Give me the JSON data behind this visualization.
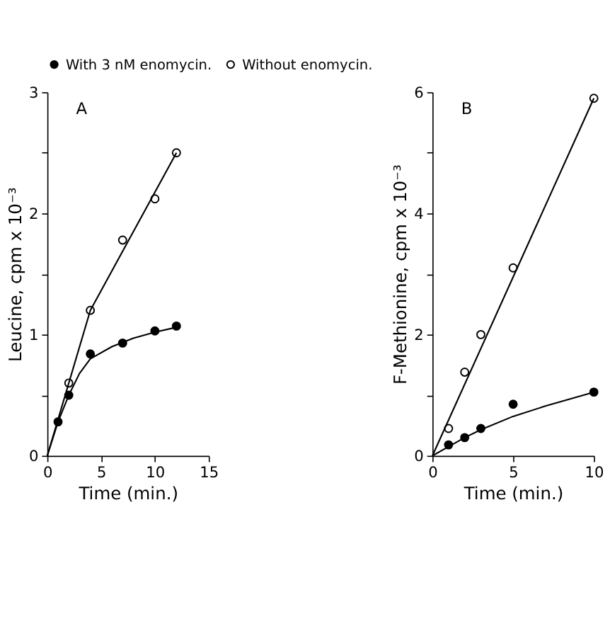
{
  "chart_data": [
    {
      "type": "scatter",
      "annotations": [
        "A"
      ],
      "xlabel": "Time  (min.)",
      "ylabel": "Leucine, cpm x 10⁻³",
      "xlim": [
        0,
        15
      ],
      "xticks": [
        0,
        5,
        10,
        15
      ],
      "ylim": [
        0,
        3
      ],
      "yticks": [
        0,
        {
          "value": 0.5,
          "label": null
        },
        1,
        {
          "value": 1.5,
          "label": null
        },
        2,
        {
          "value": 2.5,
          "label": null
        },
        3
      ],
      "grid": false,
      "legend": "top",
      "marker": "circle",
      "series": [
        {
          "name": "With 3 nM enomycin.",
          "type": "scatter",
          "color": "#000000",
          "x": [
            1,
            2,
            4,
            7,
            10,
            12
          ],
          "values": [
            0.28,
            0.5,
            0.84,
            0.93,
            1.03,
            1.07
          ]
        },
        {
          "name": "Without enomycin.",
          "type": "scatter",
          "color": "#ffffff",
          "x": [
            2,
            4,
            7,
            10,
            12
          ],
          "values": [
            0.6,
            1.2,
            1.78,
            2.12,
            2.5
          ]
        },
        {
          "type": "line",
          "color": "#000000",
          "marker": "none",
          "x": [
            0,
            1,
            2,
            3,
            4,
            6,
            8,
            10,
            12
          ],
          "values": [
            0,
            0.28,
            0.5,
            0.68,
            0.8,
            0.9,
            0.97,
            1.02,
            1.06
          ]
        },
        {
          "type": "line",
          "color": "#000000",
          "marker": "none",
          "x": [
            0,
            4,
            12
          ],
          "values": [
            0,
            1.2,
            2.5
          ]
        }
      ]
    },
    {
      "type": "scatter",
      "annotations": [
        "B"
      ],
      "xlabel": "Time  (min.)",
      "ylabel": "F-Methionine, cpm x 10⁻³",
      "xlim": [
        0,
        10
      ],
      "xticks": [
        0,
        5,
        10
      ],
      "ylim": [
        0,
        6
      ],
      "yticks": [
        0,
        {
          "value": 1,
          "label": null
        },
        2,
        {
          "value": 3,
          "label": null
        },
        4,
        {
          "value": 5,
          "label": null
        },
        6
      ],
      "grid": false,
      "marker": "circle",
      "series": [
        {
          "type": "scatter",
          "color": "#000000",
          "x": [
            1,
            2,
            3,
            5,
            10
          ],
          "values": [
            0.18,
            0.3,
            0.45,
            0.85,
            1.05
          ]
        },
        {
          "type": "scatter",
          "color": "#ffffff",
          "x": [
            1,
            2,
            3,
            5,
            10
          ],
          "values": [
            0.45,
            1.38,
            2.0,
            3.1,
            5.9
          ]
        },
        {
          "type": "line",
          "color": "#000000",
          "marker": "none",
          "x": [
            0,
            1,
            2,
            3,
            5,
            7,
            10
          ],
          "values": [
            0,
            0.15,
            0.3,
            0.43,
            0.65,
            0.82,
            1.05
          ]
        },
        {
          "type": "line",
          "color": "#000000",
          "marker": "none",
          "x": [
            0,
            10
          ],
          "values": [
            0,
            5.9
          ]
        }
      ]
    }
  ]
}
